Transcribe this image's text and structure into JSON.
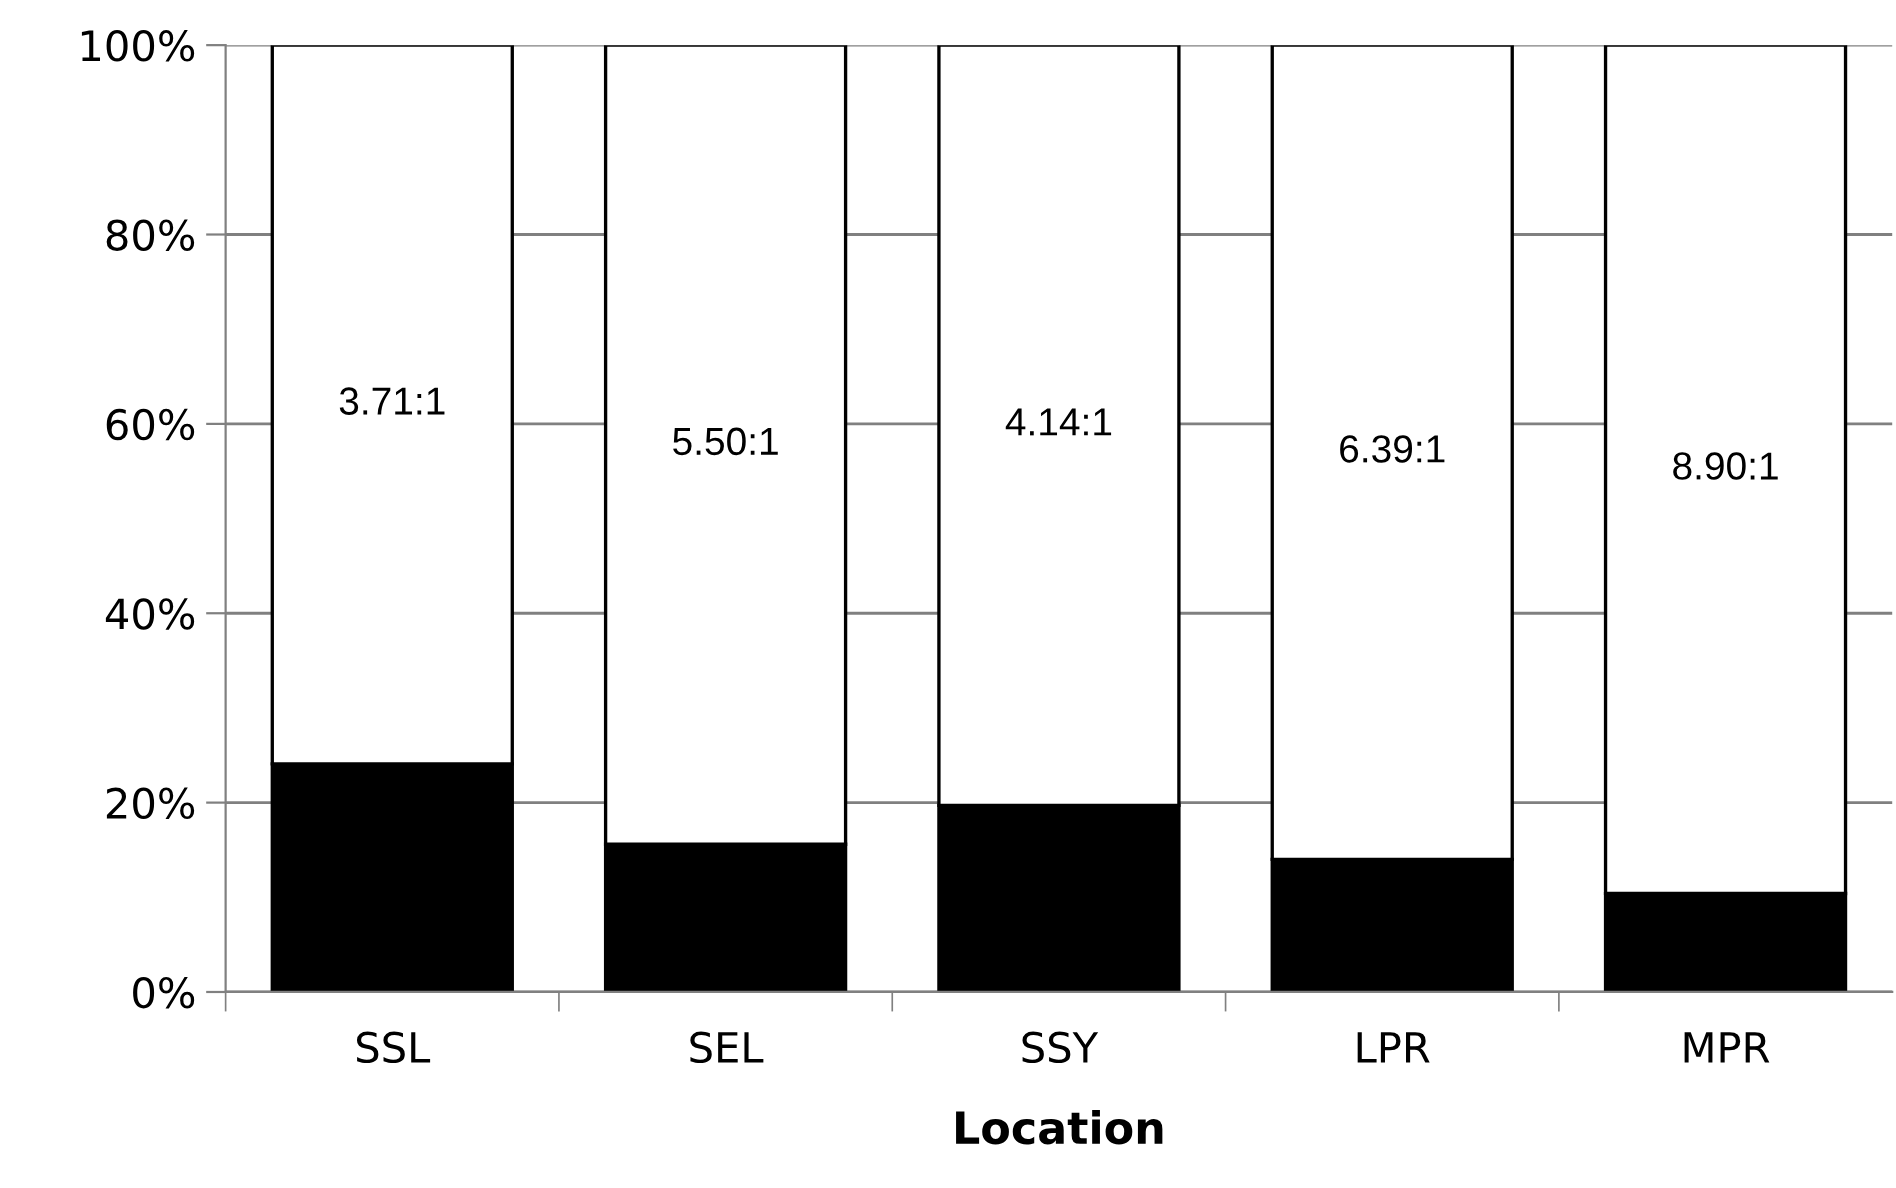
{
  "chart_data": {
    "type": "bar",
    "stacked": true,
    "xlabel": "Location",
    "categories": [
      "SSL",
      "SEL",
      "SSY",
      "LPR",
      "MPR"
    ],
    "series": [
      {
        "color": "#000000",
        "values": [
          24.1,
          15.6,
          19.7,
          14.0,
          10.4
        ]
      },
      {
        "color": "#ffffff",
        "values": [
          75.9,
          84.4,
          80.3,
          86.0,
          89.6
        ],
        "value_labels": [
          "3.71:1",
          "5.50:1",
          "4.14:1",
          "6.39:1",
          "8.90:1"
        ]
      }
    ],
    "ylim": [
      0,
      100
    ],
    "yticks": [
      {
        "value": 0,
        "label": "0%"
      },
      {
        "value": 20,
        "label": "20%"
      },
      {
        "value": 40,
        "label": "40%"
      },
      {
        "value": 60,
        "label": "60%"
      },
      {
        "value": 80,
        "label": "80%"
      },
      {
        "value": 100,
        "label": "100%"
      }
    ],
    "grid": "y",
    "legend": false
  }
}
